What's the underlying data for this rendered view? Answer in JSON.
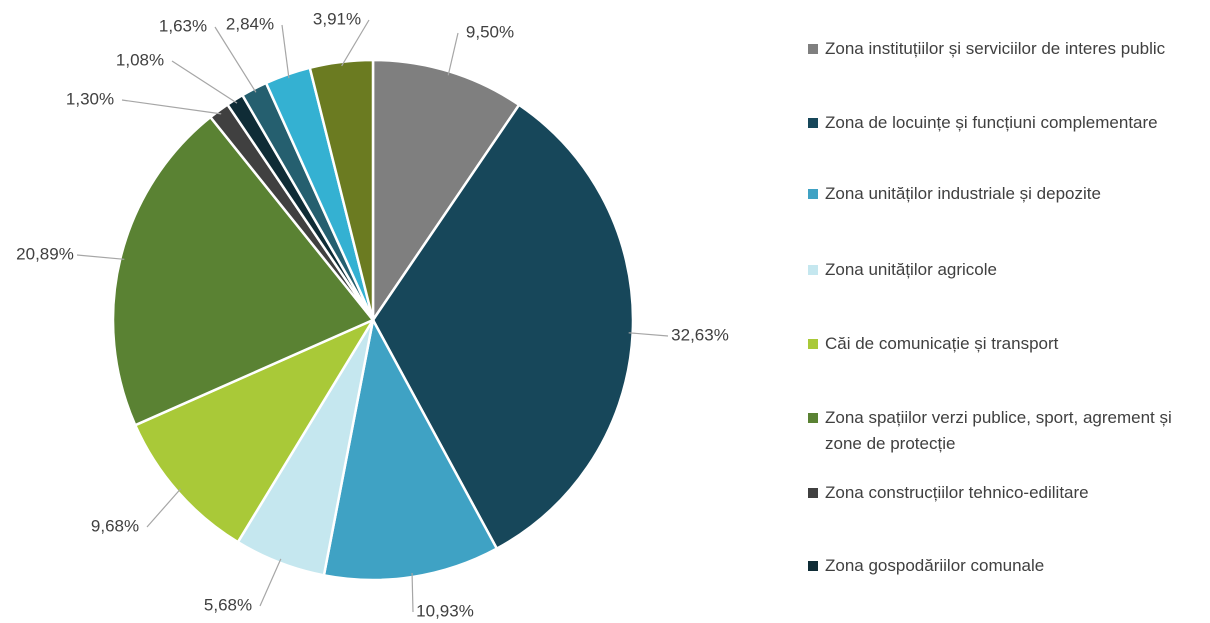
{
  "chart_data": {
    "type": "pie",
    "categories": [
      "Zona instituțiilor și serviciilor de interes public",
      "Zona de locuințe și funcțiuni complementare",
      "Zona unităților industriale și depozite",
      "Zona unităților agricole",
      "Căi de comunicație și transport",
      "Zona spațiilor verzi publice, sport, agrement și zone de protecție",
      "Zona construcțiilor tehnico-edilitare",
      "Zona gospodăriilor comunale",
      null,
      null,
      null
    ],
    "values": [
      9.5,
      32.63,
      10.93,
      5.68,
      9.68,
      20.89,
      1.3,
      1.08,
      1.63,
      2.84,
      3.91
    ],
    "value_labels": [
      "9,50%",
      "32,63%",
      "10,93%",
      "5,68%",
      "9,68%",
      "20,89%",
      "1,30%",
      "1,08%",
      "1,63%",
      "2,84%",
      "3,91%"
    ],
    "colors": [
      "#7f7f7f",
      "#17475a",
      "#3fa2c4",
      "#c5e7ef",
      "#a9c938",
      "#5a8233",
      "#404040",
      "#0f2c36",
      "#255f6f",
      "#34b1d2",
      "#6b7b21"
    ],
    "legend": "right"
  }
}
